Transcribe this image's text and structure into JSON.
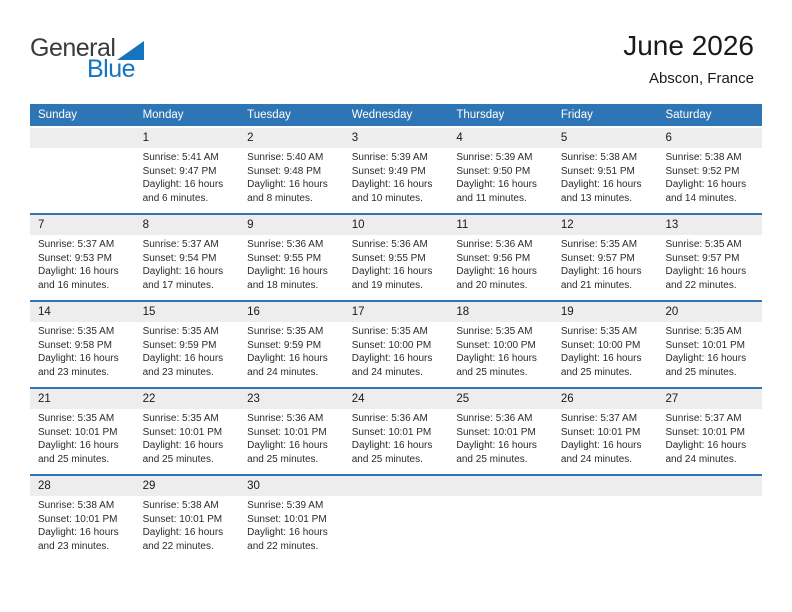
{
  "logo": {
    "text_dark": "General",
    "text_blue": "Blue"
  },
  "title": {
    "month": "June 2026",
    "location": "Abscon, France"
  },
  "colors": {
    "header_blue": "#2E75B6",
    "day_band_gray": "#EDEDED",
    "logo_blue": "#1474BE",
    "logo_dark": "#3B3B3B"
  },
  "calendar": {
    "weekdays": [
      "Sunday",
      "Monday",
      "Tuesday",
      "Wednesday",
      "Thursday",
      "Friday",
      "Saturday"
    ],
    "weeks": [
      [
        {
          "day": "",
          "sunrise": "",
          "sunset": "",
          "daylight": ""
        },
        {
          "day": "1",
          "sunrise": "Sunrise: 5:41 AM",
          "sunset": "Sunset: 9:47 PM",
          "daylight": "Daylight: 16 hours and 6 minutes."
        },
        {
          "day": "2",
          "sunrise": "Sunrise: 5:40 AM",
          "sunset": "Sunset: 9:48 PM",
          "daylight": "Daylight: 16 hours and 8 minutes."
        },
        {
          "day": "3",
          "sunrise": "Sunrise: 5:39 AM",
          "sunset": "Sunset: 9:49 PM",
          "daylight": "Daylight: 16 hours and 10 minutes."
        },
        {
          "day": "4",
          "sunrise": "Sunrise: 5:39 AM",
          "sunset": "Sunset: 9:50 PM",
          "daylight": "Daylight: 16 hours and 11 minutes."
        },
        {
          "day": "5",
          "sunrise": "Sunrise: 5:38 AM",
          "sunset": "Sunset: 9:51 PM",
          "daylight": "Daylight: 16 hours and 13 minutes."
        },
        {
          "day": "6",
          "sunrise": "Sunrise: 5:38 AM",
          "sunset": "Sunset: 9:52 PM",
          "daylight": "Daylight: 16 hours and 14 minutes."
        }
      ],
      [
        {
          "day": "7",
          "sunrise": "Sunrise: 5:37 AM",
          "sunset": "Sunset: 9:53 PM",
          "daylight": "Daylight: 16 hours and 16 minutes."
        },
        {
          "day": "8",
          "sunrise": "Sunrise: 5:37 AM",
          "sunset": "Sunset: 9:54 PM",
          "daylight": "Daylight: 16 hours and 17 minutes."
        },
        {
          "day": "9",
          "sunrise": "Sunrise: 5:36 AM",
          "sunset": "Sunset: 9:55 PM",
          "daylight": "Daylight: 16 hours and 18 minutes."
        },
        {
          "day": "10",
          "sunrise": "Sunrise: 5:36 AM",
          "sunset": "Sunset: 9:55 PM",
          "daylight": "Daylight: 16 hours and 19 minutes."
        },
        {
          "day": "11",
          "sunrise": "Sunrise: 5:36 AM",
          "sunset": "Sunset: 9:56 PM",
          "daylight": "Daylight: 16 hours and 20 minutes."
        },
        {
          "day": "12",
          "sunrise": "Sunrise: 5:35 AM",
          "sunset": "Sunset: 9:57 PM",
          "daylight": "Daylight: 16 hours and 21 minutes."
        },
        {
          "day": "13",
          "sunrise": "Sunrise: 5:35 AM",
          "sunset": "Sunset: 9:57 PM",
          "daylight": "Daylight: 16 hours and 22 minutes."
        }
      ],
      [
        {
          "day": "14",
          "sunrise": "Sunrise: 5:35 AM",
          "sunset": "Sunset: 9:58 PM",
          "daylight": "Daylight: 16 hours and 23 minutes."
        },
        {
          "day": "15",
          "sunrise": "Sunrise: 5:35 AM",
          "sunset": "Sunset: 9:59 PM",
          "daylight": "Daylight: 16 hours and 23 minutes."
        },
        {
          "day": "16",
          "sunrise": "Sunrise: 5:35 AM",
          "sunset": "Sunset: 9:59 PM",
          "daylight": "Daylight: 16 hours and 24 minutes."
        },
        {
          "day": "17",
          "sunrise": "Sunrise: 5:35 AM",
          "sunset": "Sunset: 10:00 PM",
          "daylight": "Daylight: 16 hours and 24 minutes."
        },
        {
          "day": "18",
          "sunrise": "Sunrise: 5:35 AM",
          "sunset": "Sunset: 10:00 PM",
          "daylight": "Daylight: 16 hours and 25 minutes."
        },
        {
          "day": "19",
          "sunrise": "Sunrise: 5:35 AM",
          "sunset": "Sunset: 10:00 PM",
          "daylight": "Daylight: 16 hours and 25 minutes."
        },
        {
          "day": "20",
          "sunrise": "Sunrise: 5:35 AM",
          "sunset": "Sunset: 10:01 PM",
          "daylight": "Daylight: 16 hours and 25 minutes."
        }
      ],
      [
        {
          "day": "21",
          "sunrise": "Sunrise: 5:35 AM",
          "sunset": "Sunset: 10:01 PM",
          "daylight": "Daylight: 16 hours and 25 minutes."
        },
        {
          "day": "22",
          "sunrise": "Sunrise: 5:35 AM",
          "sunset": "Sunset: 10:01 PM",
          "daylight": "Daylight: 16 hours and 25 minutes."
        },
        {
          "day": "23",
          "sunrise": "Sunrise: 5:36 AM",
          "sunset": "Sunset: 10:01 PM",
          "daylight": "Daylight: 16 hours and 25 minutes."
        },
        {
          "day": "24",
          "sunrise": "Sunrise: 5:36 AM",
          "sunset": "Sunset: 10:01 PM",
          "daylight": "Daylight: 16 hours and 25 minutes."
        },
        {
          "day": "25",
          "sunrise": "Sunrise: 5:36 AM",
          "sunset": "Sunset: 10:01 PM",
          "daylight": "Daylight: 16 hours and 25 minutes."
        },
        {
          "day": "26",
          "sunrise": "Sunrise: 5:37 AM",
          "sunset": "Sunset: 10:01 PM",
          "daylight": "Daylight: 16 hours and 24 minutes."
        },
        {
          "day": "27",
          "sunrise": "Sunrise: 5:37 AM",
          "sunset": "Sunset: 10:01 PM",
          "daylight": "Daylight: 16 hours and 24 minutes."
        }
      ],
      [
        {
          "day": "28",
          "sunrise": "Sunrise: 5:38 AM",
          "sunset": "Sunset: 10:01 PM",
          "daylight": "Daylight: 16 hours and 23 minutes."
        },
        {
          "day": "29",
          "sunrise": "Sunrise: 5:38 AM",
          "sunset": "Sunset: 10:01 PM",
          "daylight": "Daylight: 16 hours and 22 minutes."
        },
        {
          "day": "30",
          "sunrise": "Sunrise: 5:39 AM",
          "sunset": "Sunset: 10:01 PM",
          "daylight": "Daylight: 16 hours and 22 minutes."
        },
        {
          "day": "",
          "sunrise": "",
          "sunset": "",
          "daylight": ""
        },
        {
          "day": "",
          "sunrise": "",
          "sunset": "",
          "daylight": ""
        },
        {
          "day": "",
          "sunrise": "",
          "sunset": "",
          "daylight": ""
        },
        {
          "day": "",
          "sunrise": "",
          "sunset": "",
          "daylight": ""
        }
      ]
    ]
  }
}
